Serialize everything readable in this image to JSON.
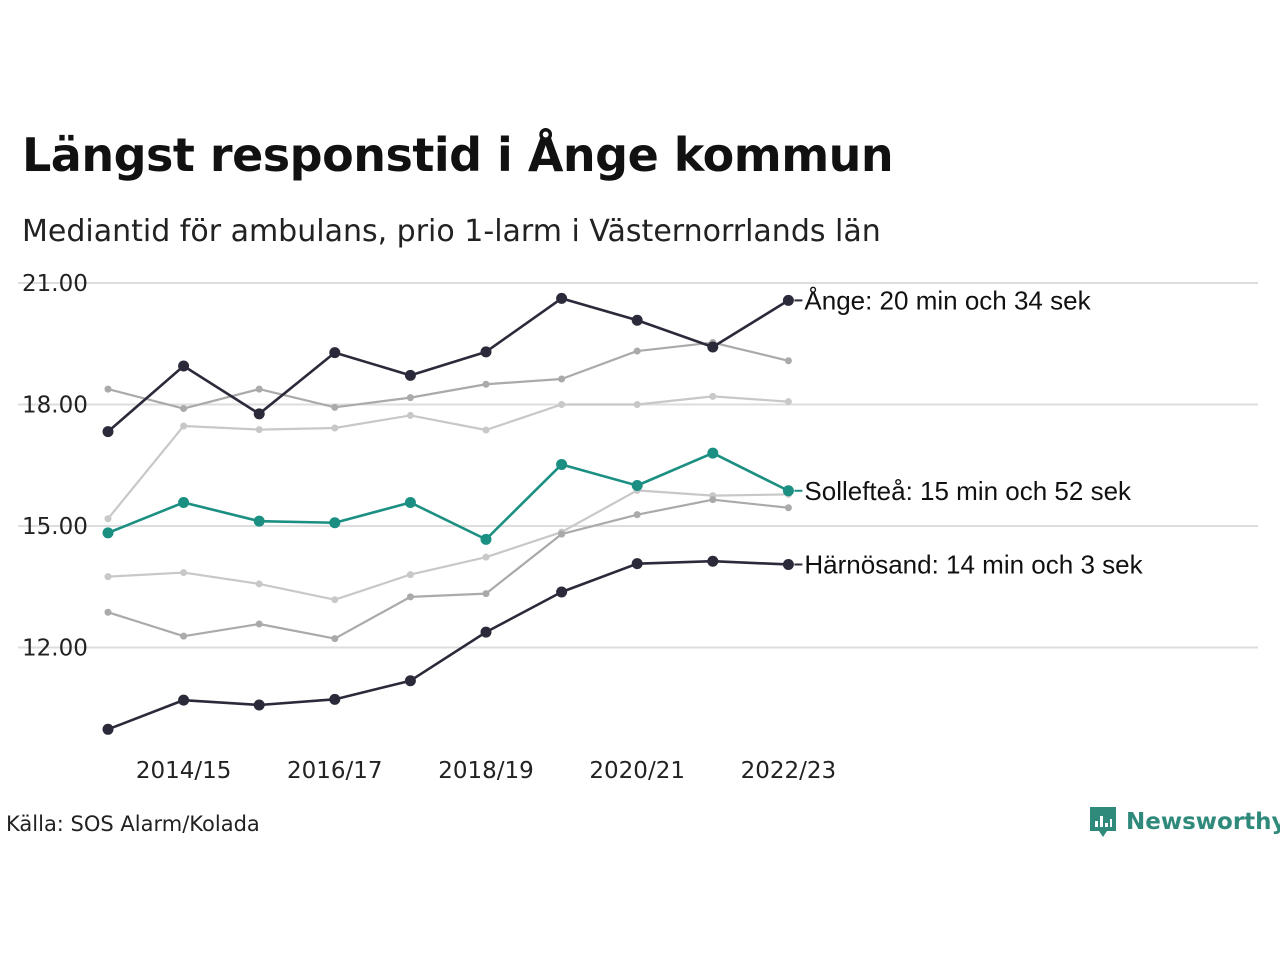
{
  "header": {
    "title": "Längst responstid i Ånge kommun",
    "subtitle": "Mediantid för ambulans, prio 1-larm i Västernorrlands län"
  },
  "footer": {
    "source": "Källa: SOS Alarm/Kolada",
    "brand": "Newsworthy"
  },
  "colors": {
    "highlight_dark": "#2b2a3a",
    "highlight_teal": "#1a8f82",
    "context_mid": "#aaaaaa",
    "context_light": "#c8c8c8",
    "gridline": "#dddddd"
  },
  "chart_data": {
    "type": "line",
    "x": [
      "2013/14",
      "2014/15",
      "2015/16",
      "2016/17",
      "2017/18",
      "2018/19",
      "2019/20",
      "2020/21",
      "2021/22",
      "2022/23"
    ],
    "x_tick_labels": [
      "2014/15",
      "2016/17",
      "2018/19",
      "2020/21",
      "2022/23"
    ],
    "y_tick_labels": [
      "12.00",
      "15.00",
      "18.00",
      "21.00"
    ],
    "y_ticks": [
      12,
      15,
      18,
      21
    ],
    "ylim": [
      10.75,
      21.75
    ],
    "grid": "horizontal",
    "series": [
      {
        "name": "Ånge",
        "role": "highlight",
        "color": "#2b2a3a",
        "label": "Ånge: 20 min och 34 sek",
        "values": [
          17.33,
          18.95,
          17.77,
          19.28,
          18.72,
          19.3,
          20.62,
          20.08,
          19.42,
          20.57
        ]
      },
      {
        "name": "Sollefteå",
        "role": "highlight",
        "color": "#1a8f82",
        "label": "Sollefteå: 15 min och 52 sek",
        "values": [
          14.83,
          15.58,
          15.12,
          15.08,
          15.58,
          14.67,
          16.52,
          16.0,
          16.8,
          15.87
        ]
      },
      {
        "name": "Härnösand",
        "role": "highlight",
        "color": "#2b2a3a",
        "label": "Härnösand: 14 min och 3 sek",
        "values": [
          9.98,
          10.7,
          10.58,
          10.72,
          11.18,
          12.38,
          13.37,
          14.07,
          14.13,
          14.05
        ]
      },
      {
        "role": "context",
        "color": "#aaaaaa",
        "values": [
          18.38,
          17.9,
          18.38,
          17.93,
          18.17,
          18.5,
          18.63,
          19.32,
          19.53,
          19.08
        ]
      },
      {
        "role": "context",
        "color": "#c8c8c8",
        "values": [
          15.18,
          17.47,
          17.38,
          17.42,
          17.73,
          17.37,
          18.0,
          18.0,
          18.2,
          18.07
        ]
      },
      {
        "role": "context",
        "color": "#c8c8c8",
        "values": [
          13.75,
          13.85,
          13.57,
          13.18,
          13.8,
          14.23,
          14.85,
          15.88,
          15.75,
          15.78
        ]
      },
      {
        "role": "context",
        "color": "#aaaaaa",
        "values": [
          12.87,
          12.28,
          12.58,
          12.22,
          13.25,
          13.33,
          14.8,
          15.28,
          15.65,
          15.45
        ]
      }
    ]
  }
}
